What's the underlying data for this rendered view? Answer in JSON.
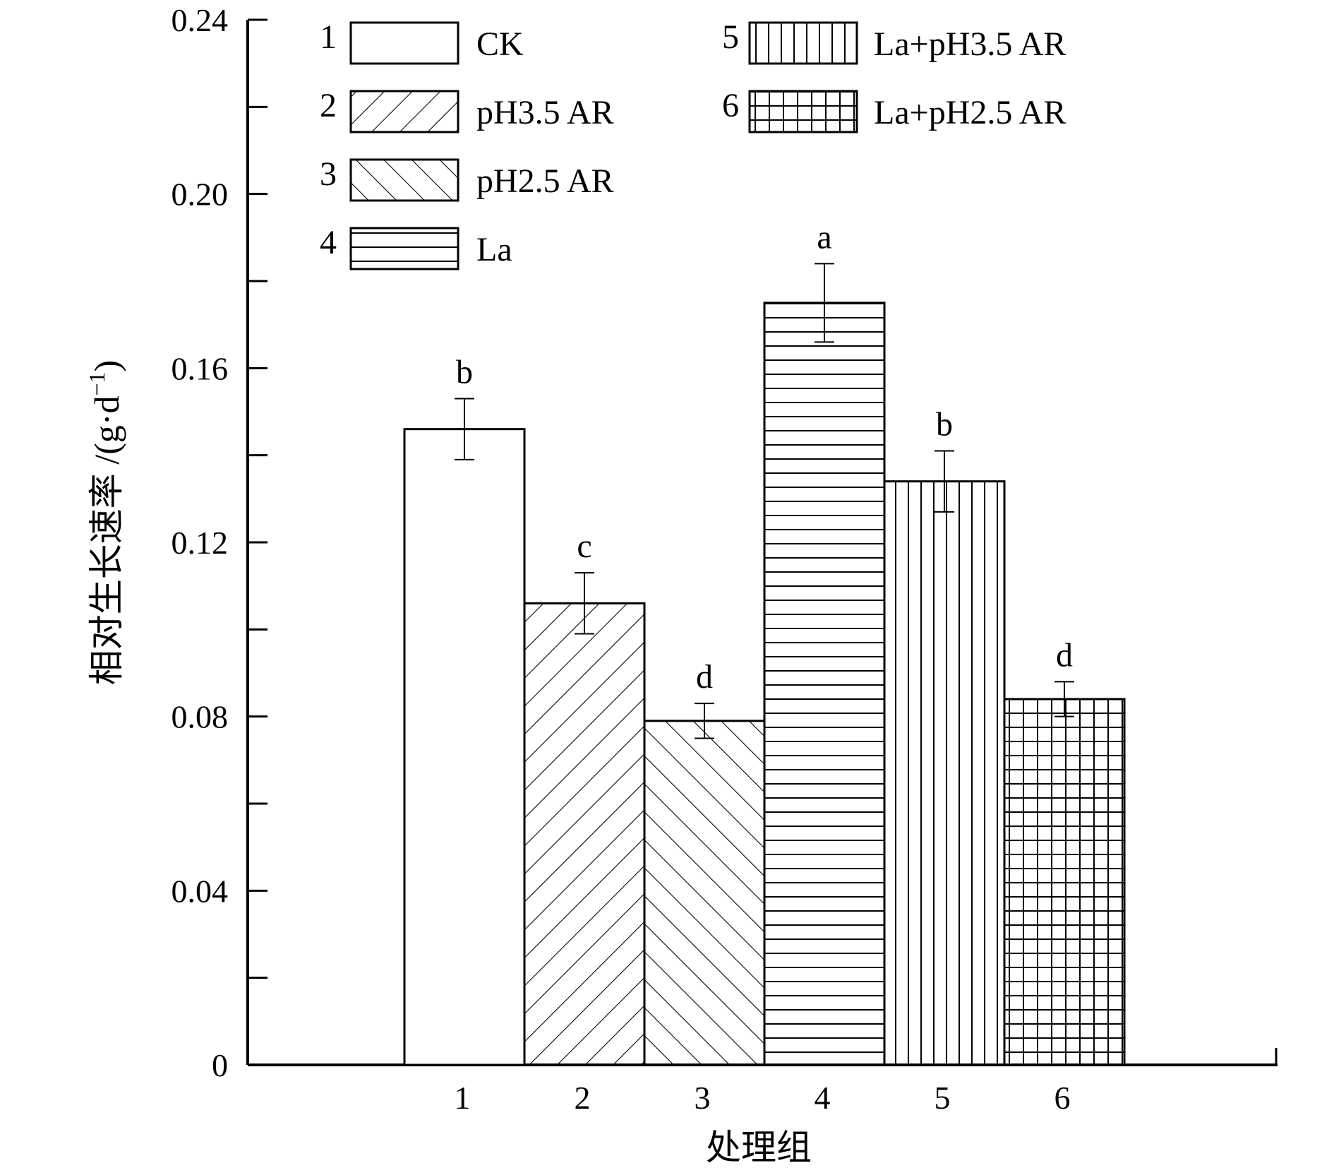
{
  "chart_data": {
    "type": "bar",
    "xlabel": "处理组",
    "ylabel": "相对生长速率",
    "yunit_prefix": " /(g·d",
    "yunit_exp": "−1",
    "yunit_suffix": ")",
    "ylim": [
      0,
      0.24
    ],
    "y_tick_labels": [
      "0",
      "0.04",
      "0.08",
      "0.12",
      "0.16",
      "0.20",
      "0.24"
    ],
    "categories": [
      "1",
      "2",
      "3",
      "4",
      "5",
      "6"
    ],
    "values": [
      0.146,
      0.106,
      0.079,
      0.175,
      0.134,
      0.084
    ],
    "errors": [
      0.007,
      0.007,
      0.004,
      0.009,
      0.007,
      0.004
    ],
    "significance": [
      "b",
      "c",
      "d",
      "a",
      "b",
      "d"
    ],
    "patterns": [
      "none",
      "diag-right",
      "diag-left",
      "horizontal",
      "vertical",
      "grid"
    ],
    "grid": false,
    "legend_position": "top",
    "legend": [
      {
        "number": "1",
        "label": "CK"
      },
      {
        "number": "2",
        "label": "pH3.5 AR"
      },
      {
        "number": "3",
        "label": "pH2.5 AR"
      },
      {
        "number": "4",
        "label": "La"
      },
      {
        "number": "5",
        "label": "La+pH3.5 AR"
      },
      {
        "number": "6",
        "label": "La+pH2.5 AR"
      }
    ]
  }
}
